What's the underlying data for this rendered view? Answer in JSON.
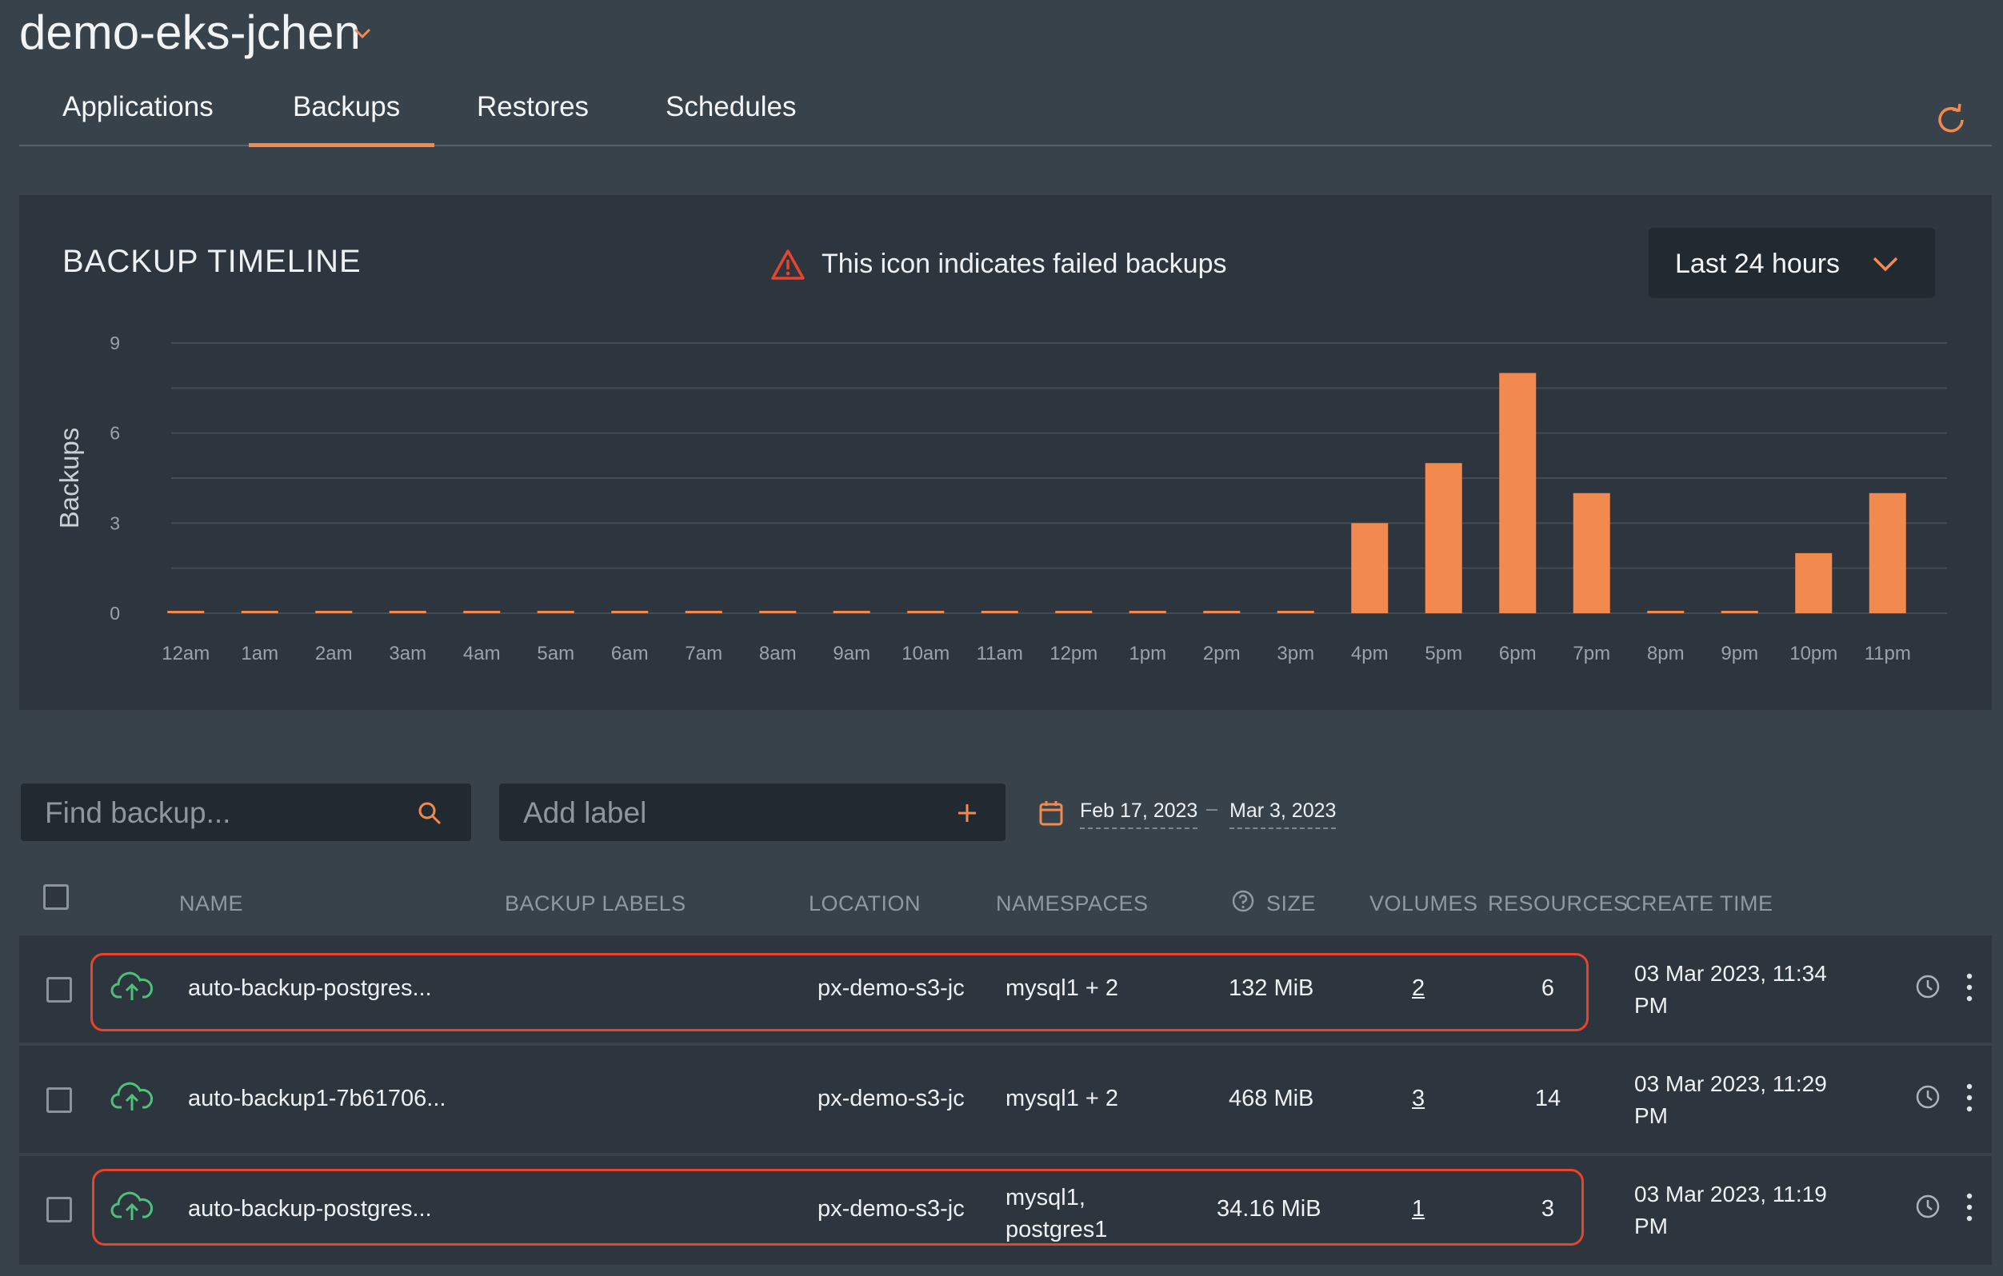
{
  "header": {
    "cluster_name": "demo-eks-jchen",
    "tabs": [
      {
        "label": "Applications",
        "active": false
      },
      {
        "label": "Backups",
        "active": true
      },
      {
        "label": "Restores",
        "active": false
      },
      {
        "label": "Schedules",
        "active": false
      }
    ],
    "refresh_icon": "refresh-icon"
  },
  "timeline": {
    "title": "BACKUP TIMELINE",
    "legend_note": "This icon indicates failed backups",
    "warning_icon": "warning-triangle-icon",
    "range_selected": "Last 24 hours"
  },
  "chart_data": {
    "type": "bar",
    "categories": [
      "12am",
      "1am",
      "2am",
      "3am",
      "4am",
      "5am",
      "6am",
      "7am",
      "8am",
      "9am",
      "10am",
      "11am",
      "12pm",
      "1pm",
      "2pm",
      "3pm",
      "4pm",
      "5pm",
      "6pm",
      "7pm",
      "8pm",
      "9pm",
      "10pm",
      "11pm"
    ],
    "values": [
      0,
      0,
      0,
      0,
      0,
      0,
      0,
      0,
      0,
      0,
      0,
      0,
      0,
      0,
      0,
      0,
      3,
      5,
      8,
      4,
      0,
      0,
      2,
      4
    ],
    "ylabel": "Backups",
    "yticks": [
      0,
      3,
      6,
      9
    ],
    "ylim": [
      0,
      9
    ],
    "bar_color": "#f28a4f",
    "grid": true
  },
  "filters": {
    "search_placeholder": "Find backup...",
    "label_placeholder": "Add label",
    "date_from": "Feb 17, 2023",
    "date_to": "Mar 3, 2023"
  },
  "table": {
    "columns": {
      "name": "NAME",
      "labels": "BACKUP LABELS",
      "location": "LOCATION",
      "namespaces": "NAMESPACES",
      "size": "SIZE",
      "volumes": "VOLUMES",
      "resources": "RESOURCES",
      "create_time": "CREATE TIME"
    },
    "rows": [
      {
        "name": "auto-backup-postgres...",
        "location": "px-demo-s3-jc",
        "namespaces_line1": "mysql1 + 2",
        "namespaces_line2": "",
        "size": "132 MiB",
        "volumes": "2",
        "resources": "6",
        "time_line1": "03 Mar 2023, 11:34",
        "time_line2": "PM",
        "highlighted": true
      },
      {
        "name": "auto-backup1-7b61706...",
        "location": "px-demo-s3-jc",
        "namespaces_line1": "mysql1 + 2",
        "namespaces_line2": "",
        "size": "468 MiB",
        "volumes": "3",
        "resources": "14",
        "time_line1": "03 Mar 2023, 11:29",
        "time_line2": "PM",
        "highlighted": false
      },
      {
        "name": "auto-backup-postgres...",
        "location": "px-demo-s3-jc",
        "namespaces_line1": "mysql1,",
        "namespaces_line2": "postgres1",
        "size": "34.16 MiB",
        "volumes": "1",
        "resources": "3",
        "time_line1": "03 Mar 2023, 11:19",
        "time_line2": "PM",
        "highlighted": true
      }
    ]
  },
  "colors": {
    "accent": "#f28a4f",
    "success": "#4fc07a",
    "highlight": "#e8442c"
  }
}
